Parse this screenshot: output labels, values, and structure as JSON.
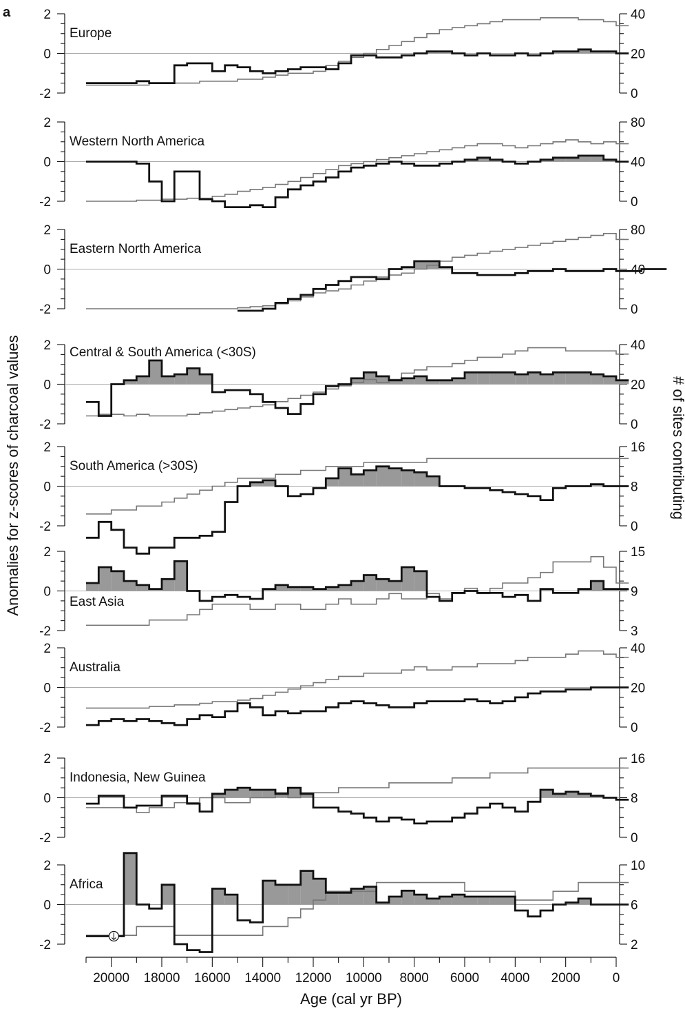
{
  "figure": {
    "panel_label": "a",
    "left_axis_label": "Anomalies for z-scores of charcoal values",
    "right_axis_label": "# of sites contributing",
    "x_axis_label": "Age (cal yr BP)",
    "x_ticks": [
      "20000",
      "18000",
      "16000",
      "14000",
      "12000",
      "10000",
      "8000",
      "6000",
      "4000",
      "2000",
      "0"
    ],
    "colors": {
      "anomaly_line": "#111111",
      "positive_fill": "#999999",
      "sites_line": "#777777",
      "zero_line": "#aaaaaa"
    }
  },
  "chart_data": [
    {
      "type": "line",
      "title": "Europe",
      "x_range": [
        21000,
        0
      ],
      "ylim": [
        -2,
        2
      ],
      "y_ticks": [
        "2",
        "0",
        "-2"
      ],
      "y2lim": [
        0,
        40
      ],
      "y2_ticks": [
        "40",
        "20",
        "0"
      ],
      "series": [
        {
          "name": "",
          "role": "anomaly",
          "x_start": 21000,
          "step": 500,
          "values": [
            -1.5,
            -1.5,
            -1.5,
            -1.5,
            -1.4,
            -1.5,
            -1.5,
            -0.6,
            -0.5,
            -0.5,
            -0.9,
            -0.6,
            -0.7,
            -0.9,
            -1.0,
            -0.9,
            -0.8,
            -0.7,
            -0.7,
            -0.8,
            -0.5,
            -0.1,
            -0.1,
            -0.2,
            -0.2,
            -0.1,
            0.0,
            0.1,
            0.1,
            0.0,
            -0.1,
            0.0,
            -0.1,
            -0.1,
            0.0,
            -0.1,
            0.0,
            0.1,
            0.1,
            0.2,
            0.1,
            0.1,
            0.0
          ]
        },
        {
          "name": "",
          "role": "sites",
          "x_start": 21000,
          "step": 500,
          "values": [
            4,
            4,
            4,
            4,
            4,
            5,
            5,
            5,
            5,
            6,
            6,
            6,
            7,
            7,
            8,
            9,
            10,
            10,
            11,
            14,
            16,
            18,
            20,
            22,
            24,
            26,
            28,
            30,
            32,
            33,
            34,
            35,
            36,
            37,
            37,
            37,
            38,
            38,
            38,
            37,
            37,
            36,
            34
          ]
        }
      ]
    },
    {
      "type": "line",
      "title": "Western North America",
      "x_range": [
        21000,
        0
      ],
      "ylim": [
        -2,
        2
      ],
      "y_ticks": [
        "2",
        "0",
        "-2"
      ],
      "y2lim": [
        0,
        80
      ],
      "y2_ticks": [
        "80",
        "40",
        "0"
      ],
      "series": [
        {
          "name": "",
          "role": "anomaly",
          "x_start": 21000,
          "step": 500,
          "values": [
            0.0,
            0.0,
            0.0,
            0.0,
            -0.1,
            -1.0,
            -2.0,
            -0.5,
            -0.5,
            -1.9,
            -2.0,
            -2.3,
            -2.3,
            -2.2,
            -2.3,
            -1.8,
            -1.4,
            -1.2,
            -1.0,
            -0.8,
            -0.5,
            -0.3,
            -0.2,
            -0.1,
            0.0,
            -0.1,
            -0.2,
            -0.2,
            -0.1,
            0.0,
            0.1,
            0.2,
            0.1,
            0.0,
            -0.1,
            0.0,
            0.1,
            0.2,
            0.2,
            0.3,
            0.3,
            0.1,
            0.0
          ]
        },
        {
          "name": "",
          "role": "sites",
          "x_start": 21000,
          "step": 500,
          "values": [
            0,
            0,
            0,
            0,
            1,
            1,
            2,
            2,
            3,
            3,
            5,
            7,
            10,
            12,
            14,
            17,
            20,
            24,
            28,
            32,
            36,
            38,
            40,
            42,
            44,
            46,
            48,
            50,
            52,
            54,
            56,
            58,
            58,
            56,
            54,
            56,
            58,
            60,
            62,
            60,
            58,
            60,
            58
          ]
        }
      ]
    },
    {
      "type": "line",
      "title": "Eastern North America",
      "x_range": [
        21000,
        0
      ],
      "ylim": [
        -2,
        2
      ],
      "y_ticks": [
        "2",
        "0",
        "-2"
      ],
      "y2lim": [
        0,
        80
      ],
      "y2_ticks": [
        "80",
        "40",
        "0"
      ],
      "series": [
        {
          "name": "",
          "role": "anomaly",
          "x_start": 15000,
          "step": 500,
          "values": [
            -2.1,
            -2.1,
            -2.0,
            -1.7,
            -1.5,
            -1.3,
            -1.0,
            -0.8,
            -0.6,
            -0.4,
            -0.4,
            -0.5,
            0.0,
            0.1,
            0.4,
            0.4,
            0.1,
            -0.2,
            -0.2,
            -0.3,
            -0.3,
            -0.3,
            -0.2,
            -0.1,
            -0.1,
            0.0,
            -0.1,
            -0.1,
            -0.1,
            0.0,
            -0.1,
            -0.1,
            0.0,
            0.0
          ]
        },
        {
          "name": "",
          "role": "sites",
          "x_start": 21000,
          "step": 500,
          "values": [
            0,
            0,
            0,
            0,
            0,
            0,
            0,
            0,
            0,
            0,
            0,
            0,
            1,
            2,
            3,
            5,
            8,
            12,
            16,
            18,
            20,
            24,
            28,
            32,
            34,
            36,
            40,
            44,
            48,
            52,
            54,
            56,
            58,
            60,
            62,
            64,
            66,
            68,
            70,
            72,
            74,
            76,
            70
          ]
        }
      ]
    },
    {
      "type": "line",
      "title": "Central & South America (<30S)",
      "x_range": [
        21000,
        0
      ],
      "ylim": [
        -2,
        2
      ],
      "y_ticks": [
        "2",
        "0",
        "-2"
      ],
      "y2lim": [
        0,
        50
      ],
      "y2_ticks": [
        "40",
        "20",
        "0"
      ],
      "series": [
        {
          "name": "",
          "role": "anomaly",
          "x_start": 21000,
          "step": 500,
          "values": [
            -0.9,
            -1.6,
            0.0,
            0.2,
            0.4,
            1.2,
            0.4,
            0.5,
            0.8,
            0.5,
            -0.4,
            -0.3,
            -0.3,
            -0.5,
            -0.9,
            -1.2,
            -1.5,
            -1.0,
            -0.5,
            -0.1,
            0.0,
            0.3,
            0.6,
            0.4,
            0.2,
            0.3,
            0.4,
            0.2,
            0.2,
            0.3,
            0.6,
            0.6,
            0.6,
            0.6,
            0.5,
            0.6,
            0.5,
            0.6,
            0.6,
            0.6,
            0.5,
            0.4,
            0.2
          ]
        },
        {
          "name": "",
          "role": "sites",
          "x_start": 21000,
          "step": 500,
          "values": [
            5,
            6,
            6,
            5,
            6,
            5,
            5,
            5,
            6,
            7,
            8,
            9,
            10,
            11,
            12,
            14,
            16,
            18,
            20,
            22,
            24,
            26,
            28,
            26,
            28,
            32,
            34,
            36,
            36,
            38,
            40,
            42,
            42,
            44,
            46,
            48,
            48,
            48,
            46,
            46,
            46,
            46,
            44
          ]
        }
      ]
    },
    {
      "type": "line",
      "title": "South America (>30S)",
      "x_range": [
        21000,
        0
      ],
      "ylim": [
        -2,
        2
      ],
      "y_ticks": [
        "2",
        "0",
        "-2"
      ],
      "y2lim": [
        0,
        20
      ],
      "y2_ticks": [
        "16",
        "8",
        "0"
      ],
      "series": [
        {
          "name": "",
          "role": "anomaly",
          "x_start": 21000,
          "step": 500,
          "values": [
            -2.6,
            -1.8,
            -2.2,
            -3.1,
            -3.4,
            -3.1,
            -3.1,
            -2.6,
            -2.6,
            -2.5,
            -2.3,
            -0.8,
            0.0,
            0.2,
            0.3,
            0.0,
            -0.5,
            -0.4,
            -0.1,
            0.4,
            0.9,
            0.6,
            0.8,
            1.0,
            0.9,
            0.8,
            0.7,
            0.5,
            0.0,
            0.0,
            -0.1,
            -0.1,
            -0.2,
            -0.3,
            -0.4,
            -0.5,
            -0.7,
            -0.1,
            0.0,
            0.0,
            0.1,
            0.0,
            0.0
          ]
        },
        {
          "name": "",
          "role": "sites",
          "x_start": 21000,
          "step": 500,
          "values": [
            3,
            3,
            4,
            4,
            5,
            5,
            6,
            7,
            8,
            9,
            10,
            11,
            12,
            12,
            12,
            13,
            13,
            14,
            14,
            15,
            15,
            15,
            16,
            16,
            16,
            16,
            16,
            17,
            17,
            17,
            17,
            17,
            17,
            17,
            17,
            17,
            17,
            17,
            17,
            17,
            17,
            17,
            17
          ]
        }
      ]
    },
    {
      "type": "line",
      "title": "East Asia",
      "x_range": [
        21000,
        0
      ],
      "ylim": [
        -2,
        2
      ],
      "y_ticks": [
        "2",
        "0",
        "-2"
      ],
      "y2lim": [
        3,
        18
      ],
      "y2_ticks": [
        "15",
        "9",
        "3"
      ],
      "series": [
        {
          "name": "",
          "role": "anomaly",
          "x_start": 21000,
          "step": 500,
          "values": [
            0.4,
            1.2,
            1.0,
            0.5,
            0.3,
            0.1,
            0.6,
            1.5,
            0.0,
            -0.5,
            -0.3,
            -0.2,
            -0.3,
            -0.4,
            0.1,
            0.3,
            0.2,
            0.2,
            0.1,
            0.2,
            0.3,
            0.5,
            0.8,
            0.6,
            0.5,
            1.2,
            1.0,
            -0.3,
            -0.5,
            -0.1,
            0.0,
            -0.1,
            -0.1,
            -0.3,
            -0.2,
            -0.5,
            0.1,
            -0.1,
            -0.1,
            0.1,
            0.5,
            0.1,
            0.1
          ]
        },
        {
          "name": "",
          "role": "sites",
          "x_start": 21000,
          "step": 500,
          "values": [
            4,
            4,
            4,
            4,
            4,
            5,
            5,
            5,
            6,
            7,
            8,
            8,
            8,
            7,
            7,
            8,
            8,
            7,
            7,
            8,
            9,
            8,
            8,
            9,
            10,
            9,
            9,
            10,
            9,
            10,
            11,
            10,
            11,
            12,
            12,
            13,
            14,
            16,
            16,
            16,
            17,
            15,
            12
          ]
        }
      ]
    },
    {
      "type": "line",
      "title": "Australia",
      "x_range": [
        21000,
        0
      ],
      "ylim": [
        -2,
        2
      ],
      "y_ticks": [
        "2",
        "0",
        "-2"
      ],
      "y2lim": [
        0,
        50
      ],
      "y2_ticks": [
        "40",
        "20",
        "0"
      ],
      "series": [
        {
          "name": "",
          "role": "anomaly",
          "x_start": 21000,
          "step": 500,
          "values": [
            -1.9,
            -1.7,
            -1.6,
            -1.7,
            -1.6,
            -1.7,
            -1.8,
            -1.9,
            -1.6,
            -1.4,
            -1.5,
            -1.2,
            -0.8,
            -1.0,
            -1.4,
            -1.2,
            -1.3,
            -1.2,
            -1.2,
            -1.0,
            -0.8,
            -0.7,
            -0.8,
            -0.9,
            -1.0,
            -1.0,
            -0.8,
            -0.7,
            -0.7,
            -0.7,
            -0.6,
            -0.7,
            -0.8,
            -0.7,
            -0.5,
            -0.3,
            -0.2,
            -0.2,
            -0.1,
            -0.1,
            0.0,
            0.0,
            0.0
          ]
        },
        {
          "name": "",
          "role": "sites",
          "x_start": 21000,
          "step": 500,
          "values": [
            12,
            12,
            12,
            12,
            12,
            13,
            13,
            14,
            14,
            15,
            16,
            16,
            17,
            18,
            20,
            22,
            24,
            26,
            28,
            30,
            32,
            32,
            34,
            34,
            34,
            36,
            38,
            36,
            36,
            38,
            38,
            40,
            40,
            40,
            42,
            44,
            44,
            44,
            46,
            48,
            48,
            46,
            44
          ]
        }
      ]
    },
    {
      "type": "line",
      "title": "Indonesia, New Guinea",
      "x_range": [
        21000,
        0
      ],
      "ylim": [
        -2,
        2
      ],
      "y_ticks": [
        "2",
        "0",
        "-2"
      ],
      "y2lim": [
        0,
        16
      ],
      "y2_ticks": [
        "16",
        "8",
        "0"
      ],
      "series": [
        {
          "name": "",
          "role": "anomaly",
          "x_start": 21000,
          "step": 500,
          "values": [
            -0.3,
            0.1,
            0.1,
            -0.5,
            -0.4,
            -0.4,
            0.1,
            0.1,
            -0.3,
            -0.7,
            0.2,
            0.4,
            0.5,
            0.4,
            0.4,
            0.2,
            0.5,
            0.2,
            -0.5,
            -0.5,
            -0.7,
            -0.8,
            -1.0,
            -1.2,
            -1.0,
            -1.1,
            -1.3,
            -1.2,
            -1.2,
            -1.0,
            -0.8,
            -0.5,
            -0.3,
            -0.5,
            -0.7,
            -0.2,
            0.4,
            0.2,
            0.3,
            0.2,
            0.1,
            0.0,
            -0.1
          ]
        },
        {
          "name": "",
          "role": "sites",
          "x_start": 21000,
          "step": 500,
          "values": [
            6,
            6,
            6,
            6,
            5,
            6,
            6,
            7,
            7,
            8,
            8,
            7,
            7,
            8,
            8,
            9,
            8,
            9,
            9,
            9,
            10,
            10,
            10,
            10,
            11,
            11,
            11,
            11,
            11,
            12,
            12,
            12,
            13,
            13,
            13,
            14,
            14,
            14,
            14,
            14,
            14,
            14,
            14
          ]
        }
      ]
    },
    {
      "type": "line",
      "title": "Africa",
      "x_range": [
        21000,
        0
      ],
      "ylim": [
        -2,
        2
      ],
      "y_ticks": [
        "2",
        "0",
        "-2"
      ],
      "y2lim": [
        2,
        11
      ],
      "y2_ticks": [
        "10",
        "6",
        "2"
      ],
      "series": [
        {
          "name": "",
          "role": "anomaly",
          "x_start": 21000,
          "step": 500,
          "values": [
            -1.6,
            -1.6,
            -1.6,
            2.6,
            0.0,
            -0.2,
            1.0,
            -2.0,
            -2.3,
            -2.4,
            0.8,
            0.5,
            -0.8,
            -0.9,
            1.2,
            1.0,
            1.0,
            1.7,
            1.3,
            0.6,
            0.6,
            0.8,
            0.9,
            0.1,
            0.4,
            0.7,
            0.5,
            0.3,
            0.4,
            0.5,
            0.4,
            0.4,
            0.4,
            0.4,
            -0.3,
            -0.6,
            -0.3,
            0.0,
            0.1,
            0.3,
            0.0,
            0.0,
            0.0
          ]
        },
        {
          "name": "",
          "role": "sites",
          "x_start": 21000,
          "step": 500,
          "values": [
            3,
            3,
            3,
            3,
            4,
            4,
            4,
            3,
            3,
            3,
            3,
            3,
            3,
            3,
            4,
            4,
            5,
            6,
            7,
            8,
            8,
            8,
            8,
            9,
            9,
            9,
            9,
            9,
            9,
            9,
            8,
            8,
            8,
            8,
            7,
            7,
            7,
            8,
            8,
            9,
            9,
            9,
            9
          ]
        }
      ]
    }
  ]
}
